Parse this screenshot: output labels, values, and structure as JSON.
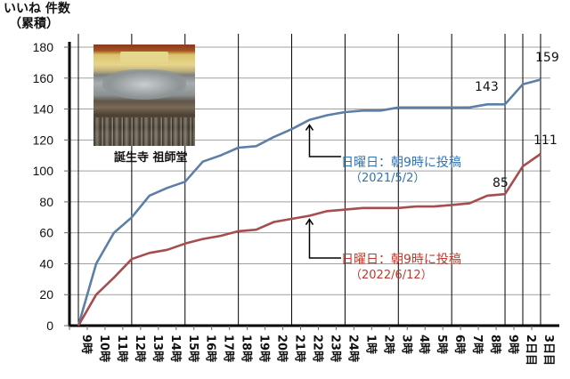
{
  "y_title_line1": "いいね 件数",
  "y_title_line2": "（累積）",
  "photo_caption": "誕生寺 祖師堂",
  "annotations": {
    "blue_line1": "日曜日：朝9時に投稿",
    "blue_line2": "（2021/5/2）",
    "red_line1": "日曜日：朝9時に投稿",
    "red_line2": "（2022/6/12）"
  },
  "value_labels": {
    "blue_9ji_next": "143",
    "blue_end": "159",
    "red_9ji_next": "85",
    "red_end": "111"
  },
  "colors": {
    "blue": "#5b7fa6",
    "red": "#a64d4d",
    "blue_text": "#2e74b5",
    "red_text": "#c0392b",
    "grid": "#a0a0a0",
    "vgrid": "#000000"
  },
  "chart_data": {
    "type": "line",
    "title": "",
    "xlabel": "",
    "ylabel": "いいね 件数（累積）",
    "ylim": [
      0,
      180
    ],
    "yticks": [
      0,
      20,
      40,
      60,
      80,
      100,
      120,
      140,
      160,
      180
    ],
    "grid": true,
    "categories": [
      "9時",
      "10時",
      "11時",
      "12時",
      "13時",
      "14時",
      "15時",
      "16時",
      "17時",
      "18時",
      "19時",
      "20時",
      "21時",
      "22時",
      "23時",
      "24時",
      "1時",
      "2時",
      "3時",
      "4時",
      "5時",
      "6時",
      "7時",
      "8時",
      "9時",
      "2日目",
      "3日目"
    ],
    "series": [
      {
        "name": "日曜日：朝9時に投稿（2021/5/2）",
        "color": "#5b7fa6",
        "values": [
          0,
          40,
          60,
          70,
          84,
          89,
          93,
          106,
          110,
          115,
          116,
          122,
          127,
          133,
          136,
          138,
          139,
          139,
          141,
          141,
          141,
          141,
          141,
          143,
          143,
          156,
          159
        ]
      },
      {
        "name": "日曜日：朝9時に投稿（2022/6/12）",
        "color": "#a64d4d",
        "values": [
          0,
          20,
          31,
          43,
          47,
          49,
          53,
          56,
          58,
          61,
          62,
          67,
          69,
          71,
          74,
          75,
          76,
          76,
          76,
          77,
          77,
          78,
          79,
          84,
          85,
          103,
          111
        ]
      }
    ],
    "annotations": [
      {
        "text": "143",
        "series": 0,
        "index": 24
      },
      {
        "text": "159",
        "series": 0,
        "index": 26
      },
      {
        "text": "85",
        "series": 1,
        "index": 24
      },
      {
        "text": "111",
        "series": 1,
        "index": 26
      }
    ]
  }
}
